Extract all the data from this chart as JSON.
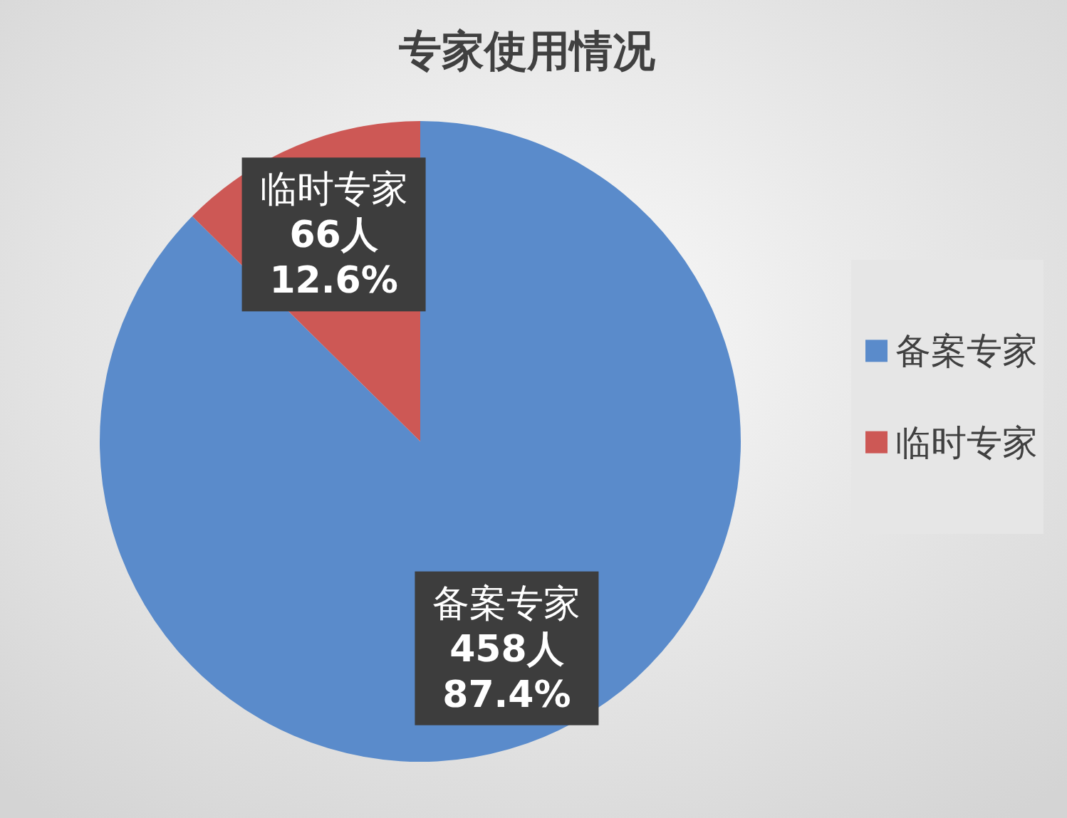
{
  "chart_data": {
    "type": "pie",
    "title": "专家使用情况",
    "categories": [
      "备案专家",
      "临时专家"
    ],
    "values": [
      458,
      66
    ],
    "colors": [
      "#5a8bcb",
      "#cd5855"
    ],
    "value_labels": [
      "458人\n87.4%",
      "66人\n12.6%"
    ],
    "legend": "right"
  }
}
